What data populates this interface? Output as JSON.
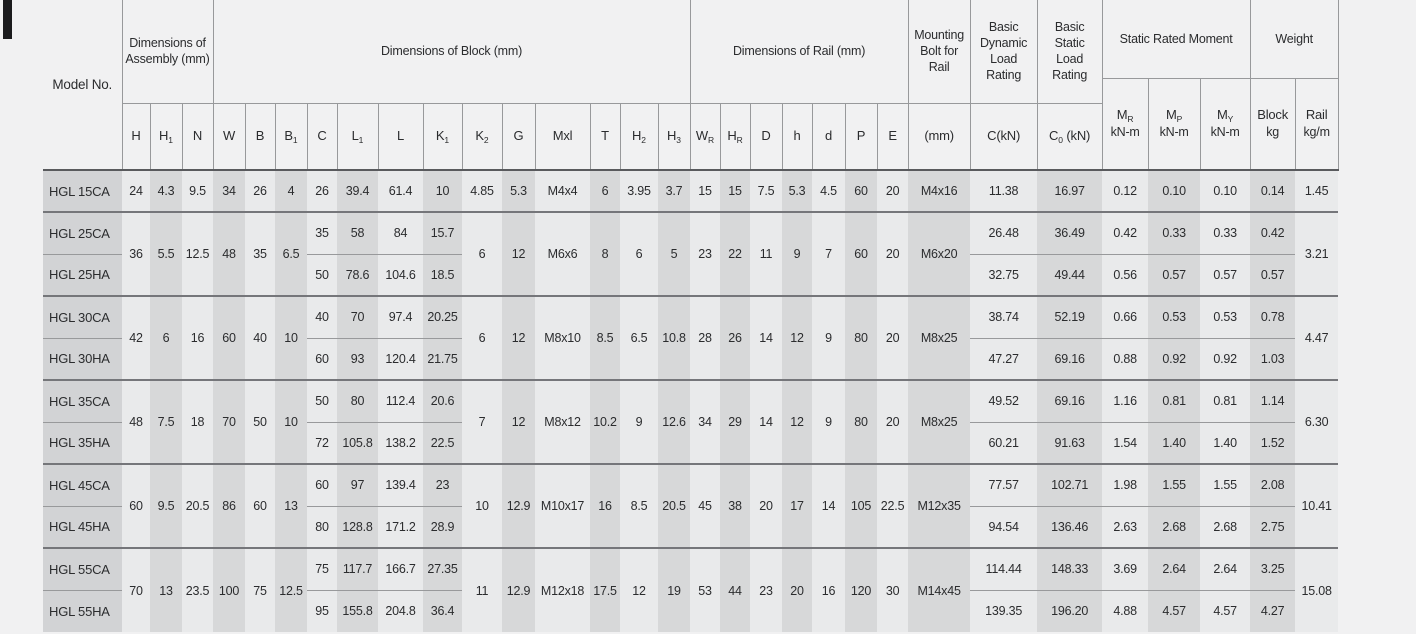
{
  "theme": {
    "page_bg": "#f1f1f2",
    "stripe_light": "#e9eaeb",
    "stripe_dark": "#d7d8d9",
    "stripe_model": "#d2d3d5",
    "line_dark": "#595a5d",
    "line_mid": "#75767a",
    "line_light": "#98999b",
    "text": "#2b2c2e",
    "corner_mark": "#1b1b1d"
  },
  "table": {
    "header": {
      "model_label": "Model No.",
      "groups": {
        "assembly": "Dimensions of Assembly (mm)",
        "block": "Dimensions of Block (mm)",
        "rail": "Dimensions of Rail (mm)",
        "bolt": "Mounting Bolt for Rail",
        "dynamic": "Basic Dynamic Load Rating",
        "static": "Basic Static Load Rating",
        "moment": "Static Rated Moment",
        "weight": "Weight"
      },
      "cols": [
        "H",
        "H_{1}",
        "N",
        "W",
        "B",
        "B_{1}",
        "C",
        "L_{1}",
        "L",
        "K_{1}",
        "K_{2}",
        "G",
        "Mxl",
        "T",
        "H_{2}",
        "H_{3}",
        "W_{R}",
        "H_{R}",
        "D",
        "h",
        "d",
        "P",
        "E",
        "(mm)",
        "C(kN)",
        "C_{0} (kN)"
      ],
      "moment_cols": [
        {
          "label": "M_{R}",
          "unit": "kN-m"
        },
        {
          "label": "M_{P}",
          "unit": "kN-m"
        },
        {
          "label": "M_{Y}",
          "unit": "kN-m"
        }
      ],
      "weight_cols": [
        {
          "label": "Block",
          "unit": "kg"
        },
        {
          "label": "Rail",
          "unit": "kg/m"
        }
      ]
    },
    "rows": [
      {
        "group_start": false,
        "sub_row": false,
        "cells": [
          [
            0,
            "HGL 15CA"
          ],
          [
            1,
            "24"
          ],
          [
            2,
            "4.3"
          ],
          [
            3,
            "9.5"
          ],
          [
            4,
            "34"
          ],
          [
            5,
            "26"
          ],
          [
            6,
            "4"
          ],
          [
            7,
            "26"
          ],
          [
            8,
            "39.4"
          ],
          [
            9,
            "61.4"
          ],
          [
            10,
            "10"
          ],
          [
            11,
            "4.85"
          ],
          [
            12,
            "5.3"
          ],
          [
            13,
            "M4x4"
          ],
          [
            14,
            "6"
          ],
          [
            15,
            "3.95"
          ],
          [
            16,
            "3.7"
          ],
          [
            17,
            "15"
          ],
          [
            18,
            "15"
          ],
          [
            19,
            "7.5"
          ],
          [
            20,
            "5.3"
          ],
          [
            21,
            "4.5"
          ],
          [
            22,
            "60"
          ],
          [
            23,
            "20"
          ],
          [
            24,
            "M4x16"
          ],
          [
            25,
            "11.38"
          ],
          [
            26,
            "16.97"
          ],
          [
            27,
            "0.12"
          ],
          [
            28,
            "0.10"
          ],
          [
            29,
            "0.10"
          ],
          [
            30,
            "0.14"
          ],
          [
            31,
            "1.45"
          ]
        ]
      },
      {
        "group_start": true,
        "sub_row": false,
        "cells": [
          [
            0,
            "HGL 25CA"
          ],
          [
            1,
            "36",
            2
          ],
          [
            2,
            "5.5",
            2
          ],
          [
            3,
            "12.5",
            2
          ],
          [
            4,
            "48",
            2
          ],
          [
            5,
            "35",
            2
          ],
          [
            6,
            "6.5",
            2
          ],
          [
            7,
            "35"
          ],
          [
            8,
            "58"
          ],
          [
            9,
            "84"
          ],
          [
            10,
            "15.7"
          ],
          [
            11,
            "6",
            2
          ],
          [
            12,
            "12",
            2
          ],
          [
            13,
            "M6x6",
            2
          ],
          [
            14,
            "8",
            2
          ],
          [
            15,
            "6",
            2
          ],
          [
            16,
            "5",
            2
          ],
          [
            17,
            "23",
            2
          ],
          [
            18,
            "22",
            2
          ],
          [
            19,
            "11",
            2
          ],
          [
            20,
            "9",
            2
          ],
          [
            21,
            "7",
            2
          ],
          [
            22,
            "60",
            2
          ],
          [
            23,
            "20",
            2
          ],
          [
            24,
            "M6x20",
            2
          ],
          [
            25,
            "26.48"
          ],
          [
            26,
            "36.49"
          ],
          [
            27,
            "0.42"
          ],
          [
            28,
            "0.33"
          ],
          [
            29,
            "0.33"
          ],
          [
            30,
            "0.42"
          ],
          [
            31,
            "3.21",
            2
          ]
        ]
      },
      {
        "group_start": false,
        "sub_row": true,
        "cells": [
          [
            0,
            "HGL 25HA"
          ],
          [
            7,
            "50"
          ],
          [
            8,
            "78.6"
          ],
          [
            9,
            "104.6"
          ],
          [
            10,
            "18.5"
          ],
          [
            25,
            "32.75"
          ],
          [
            26,
            "49.44"
          ],
          [
            27,
            "0.56"
          ],
          [
            28,
            "0.57"
          ],
          [
            29,
            "0.57"
          ],
          [
            30,
            "0.57"
          ]
        ]
      },
      {
        "group_start": true,
        "sub_row": false,
        "cells": [
          [
            0,
            "HGL 30CA"
          ],
          [
            1,
            "42",
            2
          ],
          [
            2,
            "6",
            2
          ],
          [
            3,
            "16",
            2
          ],
          [
            4,
            "60",
            2
          ],
          [
            5,
            "40",
            2
          ],
          [
            6,
            "10",
            2
          ],
          [
            7,
            "40"
          ],
          [
            8,
            "70"
          ],
          [
            9,
            "97.4"
          ],
          [
            10,
            "20.25"
          ],
          [
            11,
            "6",
            2
          ],
          [
            12,
            "12",
            2
          ],
          [
            13,
            "M8x10",
            2
          ],
          [
            14,
            "8.5",
            2
          ],
          [
            15,
            "6.5",
            2
          ],
          [
            16,
            "10.8",
            2
          ],
          [
            17,
            "28",
            2
          ],
          [
            18,
            "26",
            2
          ],
          [
            19,
            "14",
            2
          ],
          [
            20,
            "12",
            2
          ],
          [
            21,
            "9",
            2
          ],
          [
            22,
            "80",
            2
          ],
          [
            23,
            "20",
            2
          ],
          [
            24,
            "M8x25",
            2
          ],
          [
            25,
            "38.74"
          ],
          [
            26,
            "52.19"
          ],
          [
            27,
            "0.66"
          ],
          [
            28,
            "0.53"
          ],
          [
            29,
            "0.53"
          ],
          [
            30,
            "0.78"
          ],
          [
            31,
            "4.47",
            2
          ]
        ]
      },
      {
        "group_start": false,
        "sub_row": true,
        "cells": [
          [
            0,
            "HGL 30HA"
          ],
          [
            7,
            "60"
          ],
          [
            8,
            "93"
          ],
          [
            9,
            "120.4"
          ],
          [
            10,
            "21.75"
          ],
          [
            25,
            "47.27"
          ],
          [
            26,
            "69.16"
          ],
          [
            27,
            "0.88"
          ],
          [
            28,
            "0.92"
          ],
          [
            29,
            "0.92"
          ],
          [
            30,
            "1.03"
          ]
        ]
      },
      {
        "group_start": true,
        "sub_row": false,
        "cells": [
          [
            0,
            "HGL 35CA"
          ],
          [
            1,
            "48",
            2
          ],
          [
            2,
            "7.5",
            2
          ],
          [
            3,
            "18",
            2
          ],
          [
            4,
            "70",
            2
          ],
          [
            5,
            "50",
            2
          ],
          [
            6,
            "10",
            2
          ],
          [
            7,
            "50"
          ],
          [
            8,
            "80"
          ],
          [
            9,
            "112.4"
          ],
          [
            10,
            "20.6"
          ],
          [
            11,
            "7",
            2
          ],
          [
            12,
            "12",
            2
          ],
          [
            13,
            "M8x12",
            2
          ],
          [
            14,
            "10.2",
            2
          ],
          [
            15,
            "9",
            2
          ],
          [
            16,
            "12.6",
            2
          ],
          [
            17,
            "34",
            2
          ],
          [
            18,
            "29",
            2
          ],
          [
            19,
            "14",
            2
          ],
          [
            20,
            "12",
            2
          ],
          [
            21,
            "9",
            2
          ],
          [
            22,
            "80",
            2
          ],
          [
            23,
            "20",
            2
          ],
          [
            24,
            "M8x25",
            2
          ],
          [
            25,
            "49.52"
          ],
          [
            26,
            "69.16"
          ],
          [
            27,
            "1.16"
          ],
          [
            28,
            "0.81"
          ],
          [
            29,
            "0.81"
          ],
          [
            30,
            "1.14"
          ],
          [
            31,
            "6.30",
            2
          ]
        ]
      },
      {
        "group_start": false,
        "sub_row": true,
        "cells": [
          [
            0,
            "HGL 35HA"
          ],
          [
            7,
            "72"
          ],
          [
            8,
            "105.8"
          ],
          [
            9,
            "138.2"
          ],
          [
            10,
            "22.5"
          ],
          [
            25,
            "60.21"
          ],
          [
            26,
            "91.63"
          ],
          [
            27,
            "1.54"
          ],
          [
            28,
            "1.40"
          ],
          [
            29,
            "1.40"
          ],
          [
            30,
            "1.52"
          ]
        ]
      },
      {
        "group_start": true,
        "sub_row": false,
        "cells": [
          [
            0,
            "HGL 45CA"
          ],
          [
            1,
            "60",
            2
          ],
          [
            2,
            "9.5",
            2
          ],
          [
            3,
            "20.5",
            2
          ],
          [
            4,
            "86",
            2
          ],
          [
            5,
            "60",
            2
          ],
          [
            6,
            "13",
            2
          ],
          [
            7,
            "60"
          ],
          [
            8,
            "97"
          ],
          [
            9,
            "139.4"
          ],
          [
            10,
            "23"
          ],
          [
            11,
            "10",
            2
          ],
          [
            12,
            "12.9",
            2
          ],
          [
            13,
            "M10x17",
            2
          ],
          [
            14,
            "16",
            2
          ],
          [
            15,
            "8.5",
            2
          ],
          [
            16,
            "20.5",
            2
          ],
          [
            17,
            "45",
            2
          ],
          [
            18,
            "38",
            2
          ],
          [
            19,
            "20",
            2
          ],
          [
            20,
            "17",
            2
          ],
          [
            21,
            "14",
            2
          ],
          [
            22,
            "105",
            2
          ],
          [
            23,
            "22.5",
            2
          ],
          [
            24,
            "M12x35",
            2
          ],
          [
            25,
            "77.57"
          ],
          [
            26,
            "102.71"
          ],
          [
            27,
            "1.98"
          ],
          [
            28,
            "1.55"
          ],
          [
            29,
            "1.55"
          ],
          [
            30,
            "2.08"
          ],
          [
            31,
            "10.41",
            2
          ]
        ]
      },
      {
        "group_start": false,
        "sub_row": true,
        "cells": [
          [
            0,
            "HGL 45HA"
          ],
          [
            7,
            "80"
          ],
          [
            8,
            "128.8"
          ],
          [
            9,
            "171.2"
          ],
          [
            10,
            "28.9"
          ],
          [
            25,
            "94.54"
          ],
          [
            26,
            "136.46"
          ],
          [
            27,
            "2.63"
          ],
          [
            28,
            "2.68"
          ],
          [
            29,
            "2.68"
          ],
          [
            30,
            "2.75"
          ]
        ]
      },
      {
        "group_start": true,
        "sub_row": false,
        "cells": [
          [
            0,
            "HGL 55CA"
          ],
          [
            1,
            "70",
            2
          ],
          [
            2,
            "13",
            2
          ],
          [
            3,
            "23.5",
            2
          ],
          [
            4,
            "100",
            2
          ],
          [
            5,
            "75",
            2
          ],
          [
            6,
            "12.5",
            2
          ],
          [
            7,
            "75"
          ],
          [
            8,
            "117.7"
          ],
          [
            9,
            "166.7"
          ],
          [
            10,
            "27.35"
          ],
          [
            11,
            "11",
            2
          ],
          [
            12,
            "12.9",
            2
          ],
          [
            13,
            "M12x18",
            2
          ],
          [
            14,
            "17.5",
            2
          ],
          [
            15,
            "12",
            2
          ],
          [
            16,
            "19",
            2
          ],
          [
            17,
            "53",
            2
          ],
          [
            18,
            "44",
            2
          ],
          [
            19,
            "23",
            2
          ],
          [
            20,
            "20",
            2
          ],
          [
            21,
            "16",
            2
          ],
          [
            22,
            "120",
            2
          ],
          [
            23,
            "30",
            2
          ],
          [
            24,
            "M14x45",
            2
          ],
          [
            25,
            "114.44"
          ],
          [
            26,
            "148.33"
          ],
          [
            27,
            "3.69"
          ],
          [
            28,
            "2.64"
          ],
          [
            29,
            "2.64"
          ],
          [
            30,
            "3.25"
          ],
          [
            31,
            "15.08",
            2
          ]
        ]
      },
      {
        "group_start": false,
        "sub_row": true,
        "cells": [
          [
            0,
            "HGL 55HA"
          ],
          [
            7,
            "95"
          ],
          [
            8,
            "155.8"
          ],
          [
            9,
            "204.8"
          ],
          [
            10,
            "36.4"
          ],
          [
            25,
            "139.35"
          ],
          [
            26,
            "196.20"
          ],
          [
            27,
            "4.88"
          ],
          [
            28,
            "4.57"
          ],
          [
            29,
            "4.57"
          ],
          [
            30,
            "4.27"
          ]
        ]
      }
    ]
  }
}
